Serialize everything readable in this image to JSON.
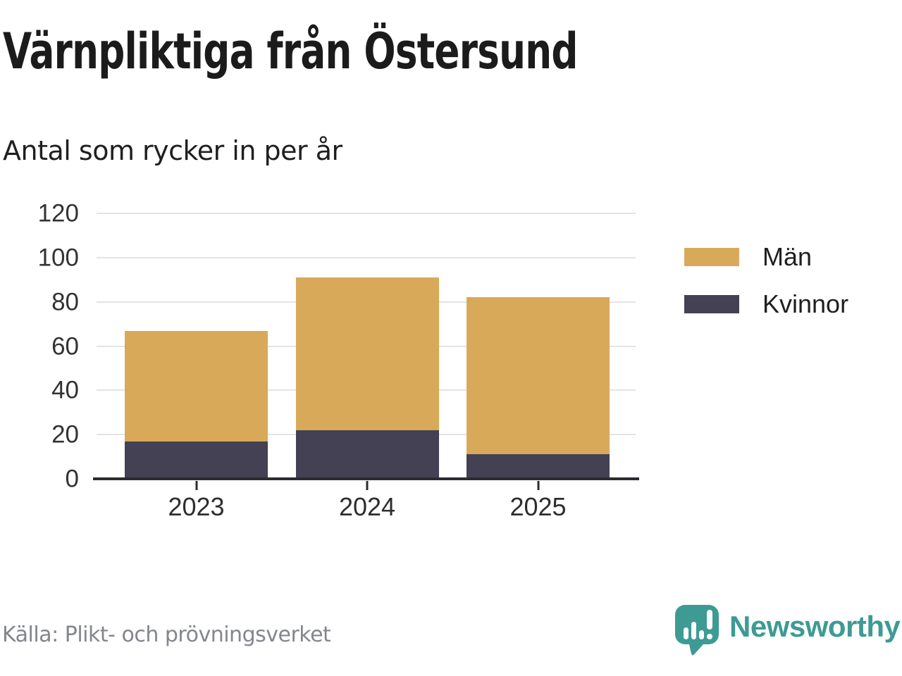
{
  "header": {
    "title": "Värnpliktiga från Östersund",
    "subtitle": "Antal som rycker in per år"
  },
  "chart_data": {
    "type": "bar",
    "stacked": true,
    "title": "Värnpliktiga från Östersund",
    "subtitle": "Antal som rycker in per år",
    "categories": [
      "2023",
      "2024",
      "2025"
    ],
    "series": [
      {
        "name": "Män",
        "color": "#d9a95a",
        "values": [
          50,
          69,
          71
        ]
      },
      {
        "name": "Kvinnor",
        "color": "#434153",
        "values": [
          17,
          22,
          11
        ]
      }
    ],
    "stack_totals": [
      67,
      91,
      82
    ],
    "xlabel": "",
    "ylabel": "",
    "ylim": [
      0,
      120
    ],
    "yticks": [
      0,
      20,
      40,
      60,
      80,
      100,
      120
    ],
    "grid": true,
    "legend_position": "right"
  },
  "footer": {
    "source": "Källa: Plikt- och prövningsverket",
    "brand": "Newsworthy",
    "brand_color": "#3d9b93",
    "brand_icon": "speech-bubble-bar-chart-icon"
  },
  "colors": {
    "men": "#d9a95a",
    "women": "#434153",
    "gridline": "#e4e4e4",
    "axis": "#2b2b31",
    "teal": "#3d9b93"
  }
}
